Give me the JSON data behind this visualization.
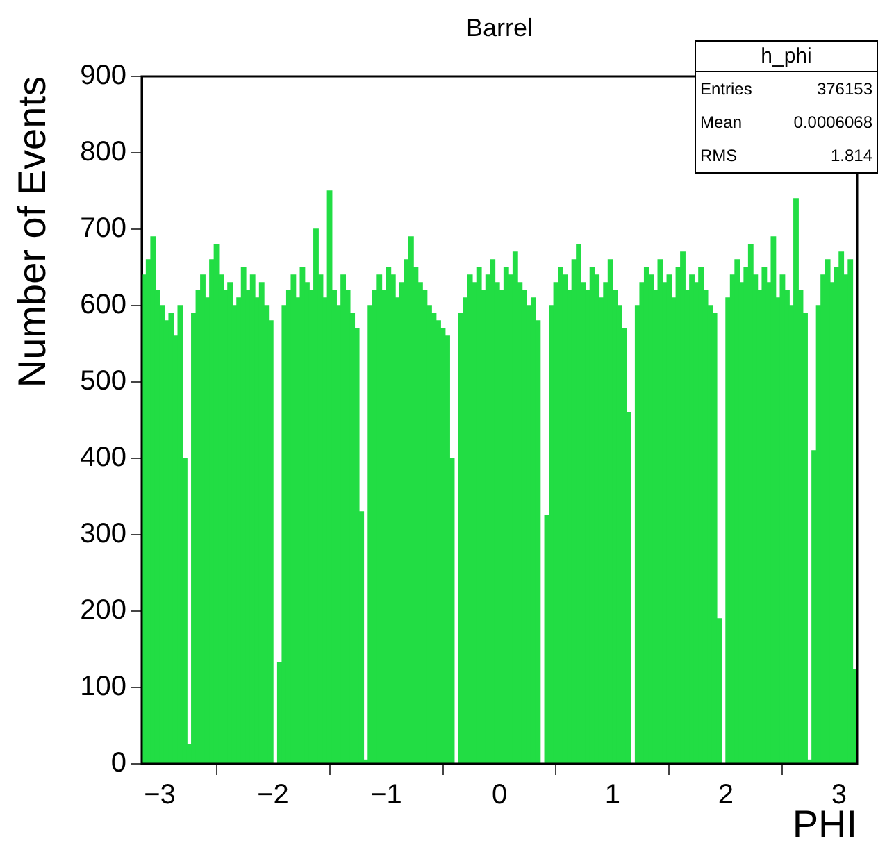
{
  "chart_data": {
    "type": "histogram",
    "title": "Barrel",
    "xlabel": "PHI",
    "ylabel": "Number of Events",
    "annotations": [
      "h_phi",
      "Entries",
      "376153",
      "Mean",
      "0.0006068",
      "RMS",
      "1.814"
    ],
    "color": "#22dd44",
    "grid": false,
    "legend": false,
    "xlim": [
      -3.16,
      3.16
    ],
    "xticks": [
      -3,
      -2,
      -1,
      0,
      1,
      2,
      3
    ],
    "ylim": [
      0,
      900
    ],
    "yticks": [
      0,
      100,
      200,
      300,
      400,
      500,
      600,
      700,
      800,
      900
    ],
    "bins": [
      -3.16,
      -3.12,
      -3.08,
      -3.04,
      -3,
      -2.96,
      -2.92,
      -2.88,
      -2.84,
      -2.8,
      -2.76,
      -2.72,
      -2.68,
      -2.64,
      -2.6,
      -2.56,
      -2.52,
      -2.48,
      -2.44,
      -2.4,
      -2.36,
      -2.32,
      -2.28,
      -2.24,
      -2.2,
      -2.16,
      -2.12,
      -2.08,
      -2.04,
      -2,
      -1.96,
      -1.92,
      -1.88,
      -1.84,
      -1.8,
      -1.76,
      -1.72,
      -1.68,
      -1.64,
      -1.6,
      -1.56,
      -1.52,
      -1.48,
      -1.44,
      -1.4,
      -1.36,
      -1.32,
      -1.28,
      -1.24,
      -1.2,
      -1.16,
      -1.12,
      -1.08,
      -1.04,
      -1,
      -0.96,
      -0.92,
      -0.88,
      -0.84,
      -0.8,
      -0.76,
      -0.72,
      -0.68,
      -0.64,
      -0.6,
      -0.56,
      -0.52,
      -0.48,
      -0.44,
      -0.4,
      -0.36,
      -0.32,
      -0.28,
      -0.24,
      -0.2,
      -0.16,
      -0.12,
      -0.08,
      -0.04,
      0,
      0.04,
      0.08,
      0.12,
      0.16,
      0.2,
      0.24,
      0.28,
      0.32,
      0.36,
      0.4,
      0.44,
      0.48,
      0.52,
      0.56,
      0.6,
      0.64,
      0.68,
      0.72,
      0.76,
      0.8,
      0.84,
      0.88,
      0.92,
      0.96,
      1,
      1.04,
      1.08,
      1.12,
      1.16,
      1.2,
      1.24,
      1.28,
      1.32,
      1.36,
      1.4,
      1.44,
      1.48,
      1.52,
      1.56,
      1.6,
      1.64,
      1.68,
      1.72,
      1.76,
      1.8,
      1.84,
      1.88,
      1.92,
      1.96,
      2,
      2.04,
      2.08,
      2.12,
      2.16,
      2.2,
      2.24,
      2.28,
      2.32,
      2.36,
      2.4,
      2.44,
      2.48,
      2.52,
      2.56,
      2.6,
      2.64,
      2.68,
      2.72,
      2.76,
      2.8,
      2.84,
      2.88,
      2.92,
      2.96,
      3,
      3.04,
      3.08,
      3.12,
      3.16
    ],
    "values": [
      640,
      660,
      690,
      620,
      600,
      580,
      590,
      560,
      600,
      400,
      25,
      590,
      620,
      640,
      610,
      660,
      680,
      640,
      620,
      630,
      600,
      610,
      650,
      620,
      640,
      610,
      630,
      600,
      580,
      0,
      133,
      600,
      620,
      640,
      610,
      650,
      630,
      620,
      700,
      640,
      610,
      750,
      620,
      600,
      640,
      620,
      590,
      570,
      330,
      5,
      600,
      620,
      640,
      620,
      650,
      640,
      610,
      630,
      660,
      690,
      650,
      630,
      620,
      600,
      590,
      580,
      570,
      560,
      400,
      0,
      590,
      610,
      640,
      630,
      650,
      620,
      640,
      660,
      630,
      620,
      650,
      640,
      670,
      630,
      620,
      600,
      610,
      580,
      0,
      325,
      600,
      630,
      650,
      640,
      620,
      660,
      680,
      630,
      620,
      650,
      640,
      610,
      630,
      660,
      620,
      600,
      570,
      460,
      0,
      600,
      630,
      650,
      640,
      620,
      660,
      630,
      640,
      610,
      650,
      670,
      620,
      640,
      630,
      650,
      620,
      600,
      590,
      190,
      0,
      610,
      640,
      660,
      630,
      650,
      680,
      640,
      620,
      650,
      630,
      690,
      610,
      640,
      620,
      600,
      740,
      620,
      590,
      5,
      410,
      600,
      640,
      660,
      630,
      650,
      670,
      640,
      660,
      124
    ]
  }
}
